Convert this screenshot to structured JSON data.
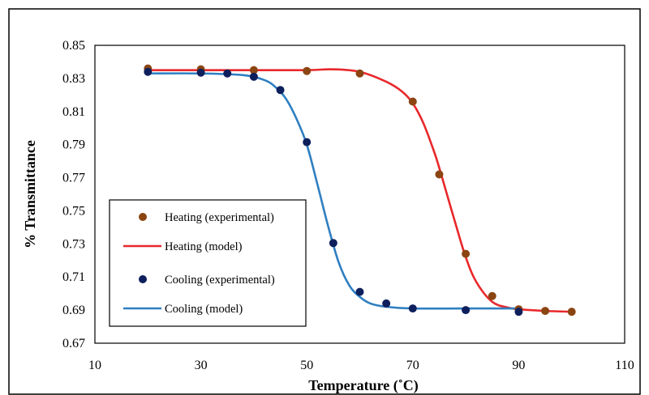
{
  "chart_data": {
    "type": "scatter",
    "xlabel": "Temperature (˚C)",
    "ylabel": "% Transmittance",
    "xlim": [
      10,
      110
    ],
    "ylim": [
      0.67,
      0.85
    ],
    "xticks": [
      10,
      30,
      50,
      70,
      90,
      110
    ],
    "yticks": [
      0.67,
      0.69,
      0.71,
      0.73,
      0.75,
      0.77,
      0.79,
      0.81,
      0.83,
      0.85
    ],
    "xtick_labels": [
      "10",
      "30",
      "50",
      "70",
      "90",
      "110"
    ],
    "ytick_labels": [
      "0.67",
      "0.69",
      "0.71",
      "0.73",
      "0.75",
      "0.77",
      "0.79",
      "0.81",
      "0.83",
      "0.85"
    ],
    "grid": false,
    "legend_placement": "center-left",
    "series": [
      {
        "name": "Heating (experimental)",
        "kind": "scatter",
        "color": "#8B4513",
        "x": [
          20,
          30,
          40,
          50,
          60,
          70,
          75,
          80,
          85,
          90,
          95,
          100
        ],
        "y": [
          0.836,
          0.8355,
          0.835,
          0.8345,
          0.833,
          0.816,
          0.772,
          0.724,
          0.6985,
          0.6905,
          0.6895,
          0.689
        ]
      },
      {
        "name": "Heating (model)",
        "kind": "line",
        "color": "#E8282B",
        "x": [
          20,
          30,
          40,
          50,
          55,
          60,
          65,
          68,
          70,
          72,
          74,
          75,
          76,
          78,
          80,
          82,
          85,
          88,
          90,
          95,
          100
        ],
        "y": [
          0.835,
          0.835,
          0.835,
          0.835,
          0.8355,
          0.834,
          0.828,
          0.822,
          0.815,
          0.803,
          0.786,
          0.776,
          0.765,
          0.743,
          0.722,
          0.707,
          0.695,
          0.6915,
          0.6905,
          0.6895,
          0.689
        ]
      },
      {
        "name": "Cooling (experimental)",
        "kind": "scatter",
        "color": "#0D1F5C",
        "x": [
          20,
          30,
          35,
          40,
          45,
          50,
          55,
          60,
          65,
          70,
          80,
          90
        ],
        "y": [
          0.834,
          0.8335,
          0.833,
          0.831,
          0.823,
          0.7915,
          0.7305,
          0.701,
          0.694,
          0.691,
          0.69,
          0.689
        ]
      },
      {
        "name": "Cooling (model)",
        "kind": "line",
        "color": "#2F7FC1",
        "x": [
          20,
          30,
          38,
          42,
          44,
          46,
          48,
          50,
          52,
          54,
          56,
          58,
          60,
          62,
          65,
          70,
          80,
          90
        ],
        "y": [
          0.833,
          0.833,
          0.832,
          0.829,
          0.825,
          0.818,
          0.806,
          0.79,
          0.766,
          0.741,
          0.719,
          0.705,
          0.698,
          0.694,
          0.692,
          0.691,
          0.691,
          0.691
        ]
      }
    ]
  }
}
